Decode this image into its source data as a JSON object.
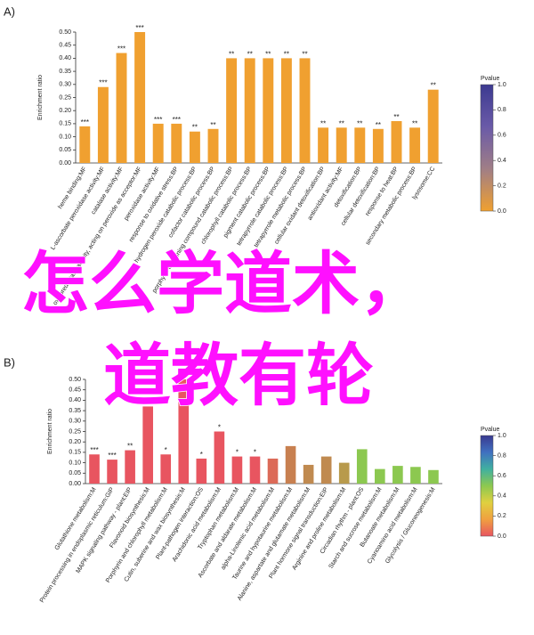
{
  "chart_data": [
    {
      "type": "bar",
      "panel": "A)",
      "ylabel": "Enrichment ratio",
      "categories": [
        "heme binding:MF",
        "L-ascorbate peroxidase activity:MF",
        "catalase activity:MF",
        "oxidoreductase activity, acting on peroxide as acceptor:MF",
        "peroxidase activity:MF",
        "response to oxidative stress:BP",
        "hydrogen peroxide catabolic process:BP",
        "cofactor catabolic process:BP",
        "porphyrin-containing compound catabolic process:BP",
        "chlorophyll catabolic process:BP",
        "pigment catabolic process:BP",
        "tetrapyrrole catabolic process:BP",
        "tetrapyrrole metabolic process:BP",
        "cellular oxidant detoxification:BP",
        "antioxidant activity:MF",
        "detoxification:BP",
        "cellular detoxification:BP",
        "response to heat:BP",
        "secondary metabolic process:BP",
        "lysosome:CC"
      ],
      "values": [
        0.14,
        0.29,
        0.42,
        0.5,
        0.15,
        0.15,
        0.12,
        0.13,
        0.4,
        0.4,
        0.4,
        0.4,
        0.4,
        0.135,
        0.135,
        0.135,
        0.13,
        0.16,
        0.135,
        0.28
      ],
      "annotations": [
        "***",
        "***",
        "***",
        "***",
        "***",
        "***",
        "**",
        "**",
        "**",
        "**",
        "**",
        "**",
        "**",
        "**",
        "**",
        "**",
        "**",
        "**",
        "**",
        "**"
      ],
      "colors": [
        "#f0a030",
        "#f0a030",
        "#f0a030",
        "#f0a030",
        "#f0a030",
        "#f0a030",
        "#f0a030",
        "#f0a030",
        "#f0a030",
        "#f0a030",
        "#f0a030",
        "#f0a030",
        "#f0a030",
        "#f0a030",
        "#f0a030",
        "#f0a030",
        "#f0a030",
        "#f0a030",
        "#f0a030",
        "#f0a030"
      ],
      "ylim": [
        0,
        0.5
      ],
      "yticks": [
        {
          "value": 0,
          "label": "0.00"
        },
        {
          "value": 0.05,
          "label": "0.05"
        },
        {
          "value": 0.1,
          "label": "0.10"
        },
        {
          "value": 0.15,
          "label": "0.15"
        },
        {
          "value": 0.2,
          "label": "0.20"
        },
        {
          "value": 0.25,
          "label": "0.25"
        },
        {
          "value": 0.3,
          "label": "0.30"
        },
        {
          "value": 0.35,
          "label": "0.35"
        },
        {
          "value": 0.4,
          "label": "0.40"
        },
        {
          "value": 0.45,
          "label": "0.45"
        },
        {
          "value": 0.5,
          "label": "0.50"
        }
      ],
      "colorbar": {
        "title": "Pvalue",
        "lim": [
          0,
          1
        ],
        "colors": [
          "#f0a030",
          "#a07e86",
          "#6a5aa8",
          "#3c3a90"
        ],
        "ticks": [
          {
            "value": 0,
            "label": "0.0"
          },
          {
            "value": 0.2,
            "label": "0.2"
          },
          {
            "value": 0.4,
            "label": "0.4"
          },
          {
            "value": 0.6,
            "label": "0.6"
          },
          {
            "value": 0.8,
            "label": "0.8"
          },
          {
            "value": 1,
            "label": "1.0"
          }
        ]
      }
    },
    {
      "type": "bar",
      "panel": "B)",
      "ylabel": "Enrichment ratio",
      "categories": [
        "Glutathione metabolism:M",
        "Protein processing in endoplasmic reticulum:GIP",
        "MAPK signaling pathway - plant:EIP",
        "Flavonoid biosynthesis:M",
        "Porphyrin and chlorophyll metabolism:M",
        "Cutin, suberine and wax biosynthesis:M",
        "Plant-pathogen interaction:OS",
        "Arachidonic acid metabolism:M",
        "Tryptophan metabolism:M",
        "Ascorbate and aldarate metabolism:M",
        "alpha-Linolenic acid metabolism:M",
        "Taurine and hypotaurine metabolism:M",
        "Alanine, aspartate and glutamate metabolism:M",
        "Plant hormone signal transduction:EIP",
        "Arginine and proline metabolism:M",
        "Circadian rhythm - plant:OS",
        "Starch and sucrose metabolism:M",
        "Butanoate metabolism:M",
        "Cyanoamino acid metabolism:M",
        "Glycolysis / Gluconeogenesis:M"
      ],
      "values": [
        0.14,
        0.115,
        0.16,
        0.37,
        0.14,
        0.5,
        0.12,
        0.25,
        0.13,
        0.13,
        0.12,
        0.18,
        0.09,
        0.13,
        0.1,
        0.165,
        0.07,
        0.085,
        0.08,
        0.065
      ],
      "annotations": [
        "***",
        "***",
        "**",
        null,
        "*",
        "*",
        "*",
        "*",
        "*",
        "*",
        null,
        null,
        null,
        null,
        null,
        null,
        null,
        null,
        null,
        null
      ],
      "colors": [
        "#e85560",
        "#e85560",
        "#e85560",
        "#e85560",
        "#e85560",
        "#e85560",
        "#e85560",
        "#e85560",
        "#e85560",
        "#e85560",
        "#dc6a58",
        "#c88050",
        "#c08a50",
        "#c08a50",
        "#b89a4c",
        "#8cc850",
        "#8cc850",
        "#8cc850",
        "#8cc850",
        "#8cc850"
      ],
      "ylim": [
        0,
        0.5
      ],
      "yticks": [
        {
          "value": 0,
          "label": "0.00"
        },
        {
          "value": 0.05,
          "label": "0.05"
        },
        {
          "value": 0.1,
          "label": "0.10"
        },
        {
          "value": 0.15,
          "label": "0.15"
        },
        {
          "value": 0.2,
          "label": "0.20"
        },
        {
          "value": 0.25,
          "label": "0.25"
        },
        {
          "value": 0.3,
          "label": "0.30"
        },
        {
          "value": 0.35,
          "label": "0.35"
        },
        {
          "value": 0.4,
          "label": "0.40"
        },
        {
          "value": 0.45,
          "label": "0.45"
        },
        {
          "value": 0.5,
          "label": "0.50"
        }
      ],
      "colorbar": {
        "title": "Pvalue",
        "lim": [
          0,
          1
        ],
        "colors": [
          "#e85560",
          "#f0a040",
          "#e0d040",
          "#8cc850",
          "#40b0a0",
          "#4070c0",
          "#3a3a90"
        ],
        "ticks": [
          {
            "value": 0,
            "label": "0.0"
          },
          {
            "value": 0.2,
            "label": "0.2"
          },
          {
            "value": 0.4,
            "label": "0.4"
          },
          {
            "value": 0.6,
            "label": "0.6"
          },
          {
            "value": 0.8,
            "label": "0.8"
          },
          {
            "value": 1,
            "label": "1.0"
          }
        ]
      }
    }
  ],
  "overlay": [
    "怎么学道术，",
    "道教有轮"
  ]
}
